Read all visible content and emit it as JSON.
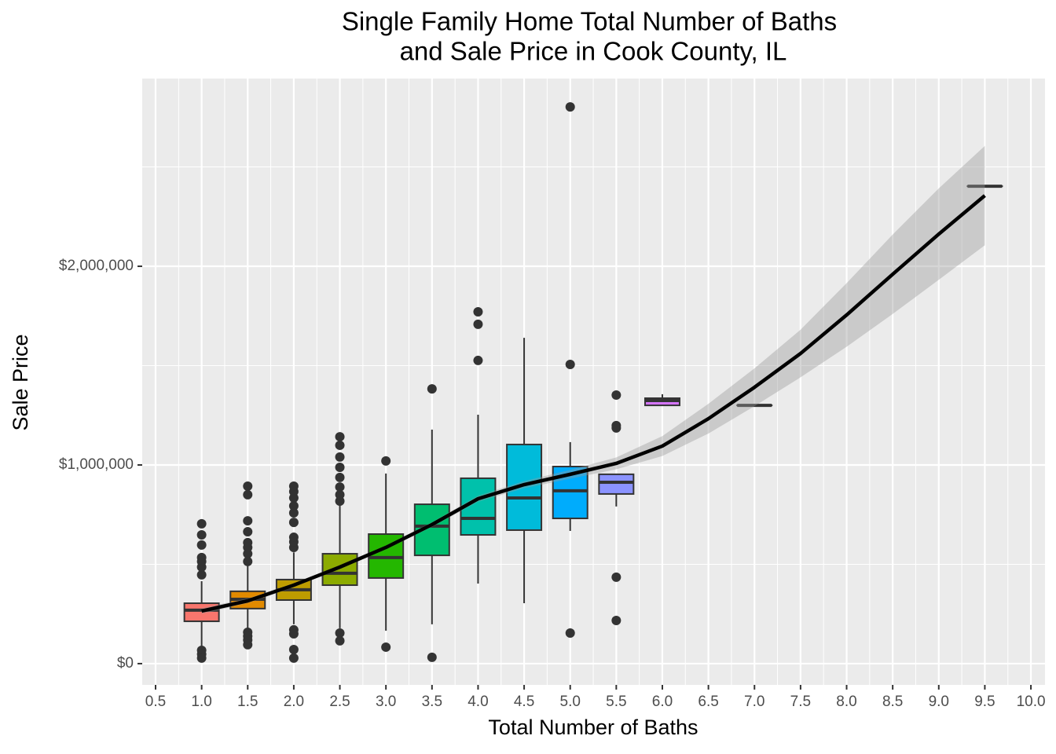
{
  "chart_data": {
    "type": "boxplot",
    "title": [
      "Single Family Home Total Number of Baths",
      "and Sale Price in Cook County, IL"
    ],
    "x_label": "Total Number of Baths",
    "y_label": "Sale Price",
    "xlim": [
      0.355,
      10.153
    ],
    "ylim": [
      -107000,
      2945000
    ],
    "xticks": [
      {
        "value": 0.5,
        "label": "0.5"
      },
      {
        "value": 1,
        "label": "1.0"
      },
      {
        "value": 1.5,
        "label": "1.5"
      },
      {
        "value": 2,
        "label": "2.0"
      },
      {
        "value": 2.5,
        "label": "2.5"
      },
      {
        "value": 3,
        "label": "3.0"
      },
      {
        "value": 3.5,
        "label": "3.5"
      },
      {
        "value": 4,
        "label": "4.0"
      },
      {
        "value": 4.5,
        "label": "4.5"
      },
      {
        "value": 5,
        "label": "5.0"
      },
      {
        "value": 5.5,
        "label": "5.5"
      },
      {
        "value": 6,
        "label": "6.0"
      },
      {
        "value": 6.5,
        "label": "6.5"
      },
      {
        "value": 7,
        "label": "7.0"
      },
      {
        "value": 7.5,
        "label": "7.5"
      },
      {
        "value": 8,
        "label": "8.0"
      },
      {
        "value": 8.5,
        "label": "8.5"
      },
      {
        "value": 9,
        "label": "9.0"
      },
      {
        "value": 9.5,
        "label": "9.5"
      },
      {
        "value": 10,
        "label": "10.0"
      }
    ],
    "yticks": [
      {
        "value": 0,
        "label": "$0"
      },
      {
        "value": 1000000,
        "label": "$1,000,000"
      },
      {
        "value": 2000000,
        "label": "$2,000,000"
      }
    ],
    "grid": true,
    "boxes": [
      {
        "x": 1,
        "color": "#F8766D",
        "whisker_low": 90000,
        "q1": 213000,
        "median": 269000,
        "q3": 304000,
        "whisker_high": 415000,
        "outliers": [
          447000,
          486000,
          514000,
          534000,
          597000,
          648000,
          704000,
          67000,
          47000,
          28000
        ]
      },
      {
        "x": 1.5,
        "color": "#E18A00",
        "whisker_low": 178000,
        "q1": 277000,
        "median": 324000,
        "q3": 364000,
        "whisker_high": 494000,
        "outliers": [
          514000,
          553000,
          585000,
          609000,
          664000,
          719000,
          850000,
          893000,
          158000,
          138000,
          119000,
          95000
        ]
      },
      {
        "x": 2,
        "color": "#BE9C00",
        "whisker_low": 198000,
        "q1": 320000,
        "median": 372000,
        "q3": 423000,
        "whisker_high": 560000,
        "outliers": [
          585000,
          613000,
          636000,
          711000,
          759000,
          794000,
          834000,
          866000,
          893000,
          170000,
          150000,
          71000,
          28000
        ]
      },
      {
        "x": 2.5,
        "color": "#8CAB00",
        "whisker_low": 178000,
        "q1": 395000,
        "median": 455000,
        "q3": 553000,
        "whisker_high": 810000,
        "outliers": [
          818000,
          850000,
          889000,
          937000,
          988000,
          1040000,
          1099000,
          1142000,
          154000,
          115000
        ]
      },
      {
        "x": 3,
        "color": "#24B700",
        "whisker_low": 166000,
        "q1": 431000,
        "median": 534000,
        "q3": 652000,
        "whisker_high": 957000,
        "outliers": [
          1020000,
          83000
        ]
      },
      {
        "x": 3.5,
        "color": "#00BE70",
        "whisker_low": 198000,
        "q1": 545000,
        "median": 692000,
        "q3": 802000,
        "whisker_high": 1178000,
        "outliers": [
          1383000,
          32000
        ]
      },
      {
        "x": 4,
        "color": "#00C1AB",
        "whisker_low": 403000,
        "q1": 648000,
        "median": 731000,
        "q3": 933000,
        "whisker_high": 1253000,
        "outliers": [
          1526000,
          1708000,
          1771000
        ]
      },
      {
        "x": 4.5,
        "color": "#00BBDA",
        "whisker_low": 304000,
        "q1": 672000,
        "median": 834000,
        "q3": 1103000,
        "whisker_high": 1640000,
        "outliers": []
      },
      {
        "x": 5,
        "color": "#00ACFC",
        "whisker_low": 668000,
        "q1": 731000,
        "median": 870000,
        "q3": 992000,
        "whisker_high": 1115000,
        "outliers": [
          1506000,
          2802000,
          154000
        ]
      },
      {
        "x": 5.5,
        "color": "#8B93FF",
        "whisker_low": 791000,
        "q1": 854000,
        "median": 913000,
        "q3": 953000,
        "whisker_high": 953000,
        "outliers": [
          1352000,
          1198000,
          1186000,
          435000,
          217000
        ]
      },
      {
        "x": 6,
        "color": "#D575FE",
        "whisker_low": 1300000,
        "q1": 1300000,
        "median": 1324000,
        "q3": 1336000,
        "whisker_high": 1356000,
        "outliers": []
      },
      {
        "x": 7,
        "color": "#F962DD",
        "whisker_low": 1300000,
        "q1": 1300000,
        "median": 1300000,
        "q3": 1300000,
        "whisker_high": 1300000,
        "outliers": []
      },
      {
        "x": 9.5,
        "color": "#FF65AC",
        "whisker_low": 2403000,
        "q1": 2403000,
        "median": 2403000,
        "q3": 2403000,
        "whisker_high": 2403000,
        "outliers": []
      }
    ],
    "smooth": {
      "color": "#000000",
      "band_color": "#999999",
      "x": [
        1,
        1.5,
        2,
        2.5,
        3,
        3.5,
        4,
        4.5,
        5,
        5.5,
        6,
        6.5,
        7,
        7.5,
        8,
        8.5,
        9,
        9.5
      ],
      "values": [
        265000,
        316000,
        395000,
        486000,
        585000,
        700000,
        830000,
        901000,
        953000,
        1008000,
        1095000,
        1233000,
        1391000,
        1561000,
        1755000,
        1960000,
        2162000,
        2356000
      ],
      "lower": [
        250000,
        304000,
        385000,
        476000,
        575000,
        688000,
        815000,
        883000,
        931000,
        978000,
        1045000,
        1158000,
        1296000,
        1441000,
        1595000,
        1760000,
        1932000,
        2106000
      ],
      "upper": [
        280000,
        328000,
        405000,
        496000,
        595000,
        712000,
        845000,
        919000,
        975000,
        1038000,
        1145000,
        1308000,
        1486000,
        1681000,
        1915000,
        2160000,
        2392000,
        2606000
      ]
    }
  }
}
